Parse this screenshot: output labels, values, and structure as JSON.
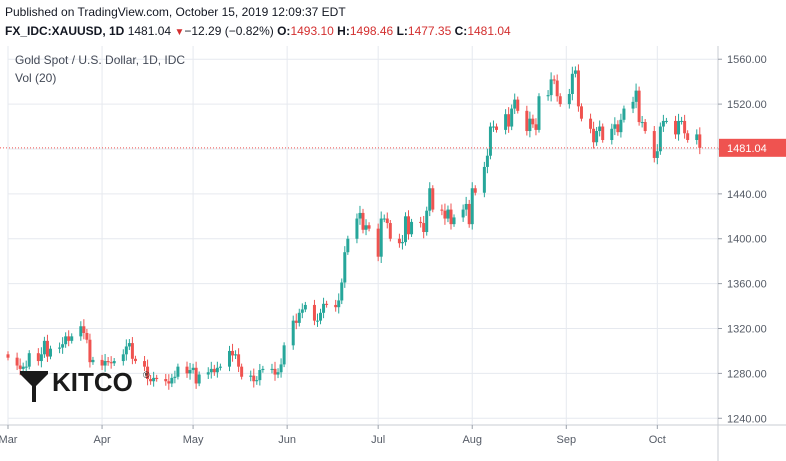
{
  "header": {
    "published": "Published on TradingView.com, October 15, 2019 12:09:37 EDT",
    "symbol": "FX_IDC:XAUUSD, 1D",
    "last": "1481.04",
    "arrow": "▼",
    "change": "−12.29 (−0.82%)",
    "o_label": "O:",
    "o_value": "1493.10",
    "h_label": "H:",
    "h_value": "1498.46",
    "l_label": "L:",
    "l_value": "1477.35",
    "c_label": "C:",
    "c_value": "1481.04"
  },
  "legend": {
    "title": "Gold Spot / U.S. Dollar, 1D, IDC",
    "volume": "Vol (20)"
  },
  "watermark": {
    "text": "KITCO",
    "registered": "®"
  },
  "colors": {
    "up": "#26a69a",
    "down": "#ef5350",
    "price_badge": "#ef5350",
    "grid": "#e6e9ef"
  },
  "chart_data": {
    "type": "candlestick",
    "title": "Gold Spot / U.S. Dollar, 1D, IDC",
    "last_price": 1481.04,
    "last_price_label": "1481.04",
    "ylim": [
      1234,
      1570
    ],
    "y_ticks": [
      1240,
      1280,
      1320,
      1360,
      1400,
      1440,
      1480,
      1520,
      1560
    ],
    "y_tick_labels": [
      "1240.00",
      "1280.00",
      "1320.00",
      "1360.00",
      "1400.00",
      "1440.00",
      "1480.00",
      "1520.00",
      "1560.00"
    ],
    "x_range": [
      "2019-03-01",
      "2019-10-21"
    ],
    "x_ticks": [
      {
        "label": "Mar",
        "date": "2019-03-01"
      },
      {
        "label": "Apr",
        "date": "2019-04-01"
      },
      {
        "label": "May",
        "date": "2019-05-01"
      },
      {
        "label": "Jun",
        "date": "2019-06-01"
      },
      {
        "label": "Jul",
        "date": "2019-07-01"
      },
      {
        "label": "Aug",
        "date": "2019-08-01"
      },
      {
        "label": "Sep",
        "date": "2019-09-01"
      },
      {
        "label": "Oct",
        "date": "2019-10-01"
      }
    ],
    "closes": [
      [
        "2019-03-01",
        1294
      ],
      [
        "2019-03-04",
        1287
      ],
      [
        "2019-03-05",
        1284
      ],
      [
        "2019-03-06",
        1286
      ],
      [
        "2019-03-07",
        1286
      ],
      [
        "2019-03-08",
        1298
      ],
      [
        "2019-03-11",
        1291
      ],
      [
        "2019-03-12",
        1297
      ],
      [
        "2019-03-13",
        1309
      ],
      [
        "2019-03-14",
        1295
      ],
      [
        "2019-03-15",
        1302
      ],
      [
        "2019-03-18",
        1303
      ],
      [
        "2019-03-19",
        1306
      ],
      [
        "2019-03-20",
        1313
      ],
      [
        "2019-03-21",
        1309
      ],
      [
        "2019-03-22",
        1313
      ],
      [
        "2019-03-25",
        1322
      ],
      [
        "2019-03-26",
        1316
      ],
      [
        "2019-03-27",
        1310
      ],
      [
        "2019-03-28",
        1290
      ],
      [
        "2019-03-29",
        1292
      ],
      [
        "2019-04-01",
        1287
      ],
      [
        "2019-04-02",
        1291
      ],
      [
        "2019-04-03",
        1290
      ],
      [
        "2019-04-04",
        1289
      ],
      [
        "2019-04-05",
        1291
      ],
      [
        "2019-04-08",
        1297
      ],
      [
        "2019-04-09",
        1304
      ],
      [
        "2019-04-10",
        1307
      ],
      [
        "2019-04-11",
        1293
      ],
      [
        "2019-04-12",
        1291
      ],
      [
        "2019-04-15",
        1286
      ],
      [
        "2019-04-16",
        1275
      ],
      [
        "2019-04-17",
        1273
      ],
      [
        "2019-04-18",
        1276
      ],
      [
        "2019-04-19",
        1275
      ],
      [
        "2019-04-22",
        1273
      ],
      [
        "2019-04-23",
        1271
      ],
      [
        "2019-04-24",
        1276
      ],
      [
        "2019-04-25",
        1277
      ],
      [
        "2019-04-26",
        1286
      ],
      [
        "2019-04-29",
        1280
      ],
      [
        "2019-04-30",
        1283
      ],
      [
        "2019-05-01",
        1285
      ],
      [
        "2019-05-02",
        1271
      ],
      [
        "2019-05-03",
        1279
      ],
      [
        "2019-05-06",
        1281
      ],
      [
        "2019-05-07",
        1284
      ],
      [
        "2019-05-08",
        1281
      ],
      [
        "2019-05-09",
        1285
      ],
      [
        "2019-05-10",
        1286
      ],
      [
        "2019-05-13",
        1300
      ],
      [
        "2019-05-14",
        1296
      ],
      [
        "2019-05-15",
        1297
      ],
      [
        "2019-05-16",
        1286
      ],
      [
        "2019-05-17",
        1277
      ],
      [
        "2019-05-20",
        1278
      ],
      [
        "2019-05-21",
        1273
      ],
      [
        "2019-05-22",
        1274
      ],
      [
        "2019-05-23",
        1283
      ],
      [
        "2019-05-24",
        1284
      ],
      [
        "2019-05-27",
        1284
      ],
      [
        "2019-05-28",
        1279
      ],
      [
        "2019-05-29",
        1281
      ],
      [
        "2019-05-30",
        1288
      ],
      [
        "2019-05-31",
        1305
      ],
      [
        "2019-06-03",
        1327
      ],
      [
        "2019-06-04",
        1325
      ],
      [
        "2019-06-05",
        1334
      ],
      [
        "2019-06-06",
        1337
      ],
      [
        "2019-06-07",
        1341
      ],
      [
        "2019-06-10",
        1327
      ],
      [
        "2019-06-11",
        1327
      ],
      [
        "2019-06-12",
        1334
      ],
      [
        "2019-06-13",
        1342
      ],
      [
        "2019-06-14",
        1341
      ],
      [
        "2019-06-17",
        1339
      ],
      [
        "2019-06-18",
        1345
      ],
      [
        "2019-06-19",
        1361
      ],
      [
        "2019-06-20",
        1388
      ],
      [
        "2019-06-21",
        1400
      ],
      [
        "2019-06-24",
        1418
      ],
      [
        "2019-06-25",
        1423
      ],
      [
        "2019-06-26",
        1408
      ],
      [
        "2019-06-27",
        1412
      ],
      [
        "2019-06-28",
        1409
      ],
      [
        "2019-07-01",
        1384
      ],
      [
        "2019-07-02",
        1418
      ],
      [
        "2019-07-03",
        1418
      ],
      [
        "2019-07-04",
        1414
      ],
      [
        "2019-07-05",
        1400
      ],
      [
        "2019-07-08",
        1396
      ],
      [
        "2019-07-09",
        1397
      ],
      [
        "2019-07-10",
        1420
      ],
      [
        "2019-07-11",
        1404
      ],
      [
        "2019-07-12",
        1415
      ],
      [
        "2019-07-15",
        1414
      ],
      [
        "2019-07-16",
        1406
      ],
      [
        "2019-07-17",
        1425
      ],
      [
        "2019-07-18",
        1445
      ],
      [
        "2019-07-19",
        1426
      ],
      [
        "2019-07-22",
        1425
      ],
      [
        "2019-07-23",
        1418
      ],
      [
        "2019-07-24",
        1426
      ],
      [
        "2019-07-25",
        1413
      ],
      [
        "2019-07-26",
        1419
      ],
      [
        "2019-07-29",
        1426
      ],
      [
        "2019-07-30",
        1431
      ],
      [
        "2019-07-31",
        1413
      ],
      [
        "2019-08-01",
        1445
      ],
      [
        "2019-08-02",
        1441
      ],
      [
        "2019-08-05",
        1464
      ],
      [
        "2019-08-06",
        1474
      ],
      [
        "2019-08-07",
        1500
      ],
      [
        "2019-08-08",
        1500
      ],
      [
        "2019-08-09",
        1497
      ],
      [
        "2019-08-12",
        1511
      ],
      [
        "2019-08-13",
        1500
      ],
      [
        "2019-08-14",
        1516
      ],
      [
        "2019-08-15",
        1524
      ],
      [
        "2019-08-16",
        1514
      ],
      [
        "2019-08-19",
        1496
      ],
      [
        "2019-08-20",
        1507
      ],
      [
        "2019-08-21",
        1502
      ],
      [
        "2019-08-22",
        1497
      ],
      [
        "2019-08-23",
        1527
      ],
      [
        "2019-08-26",
        1528
      ],
      [
        "2019-08-27",
        1542
      ],
      [
        "2019-08-28",
        1541
      ],
      [
        "2019-08-29",
        1527
      ],
      [
        "2019-08-30",
        1520
      ],
      [
        "2019-09-02",
        1529
      ],
      [
        "2019-09-03",
        1547
      ],
      [
        "2019-09-04",
        1550
      ],
      [
        "2019-09-05",
        1518
      ],
      [
        "2019-09-06",
        1507
      ],
      [
        "2019-09-09",
        1498
      ],
      [
        "2019-09-10",
        1486
      ],
      [
        "2019-09-11",
        1496
      ],
      [
        "2019-09-12",
        1500
      ],
      [
        "2019-09-13",
        1488
      ],
      [
        "2019-09-16",
        1498
      ],
      [
        "2019-09-17",
        1502
      ],
      [
        "2019-09-18",
        1495
      ],
      [
        "2019-09-19",
        1506
      ],
      [
        "2019-09-20",
        1516
      ],
      [
        "2019-09-23",
        1522
      ],
      [
        "2019-09-24",
        1532
      ],
      [
        "2019-09-25",
        1504
      ],
      [
        "2019-09-26",
        1504
      ],
      [
        "2019-09-27",
        1496
      ],
      [
        "2019-09-30",
        1472
      ],
      [
        "2019-10-01",
        1478
      ],
      [
        "2019-10-02",
        1500
      ],
      [
        "2019-10-03",
        1505
      ],
      [
        "2019-10-04",
        1505
      ],
      [
        "2019-10-07",
        1493
      ],
      [
        "2019-10-08",
        1505
      ],
      [
        "2019-10-09",
        1505
      ],
      [
        "2019-10-10",
        1494
      ],
      [
        "2019-10-11",
        1488
      ],
      [
        "2019-10-14",
        1493
      ],
      [
        "2019-10-15",
        1481
      ]
    ]
  }
}
